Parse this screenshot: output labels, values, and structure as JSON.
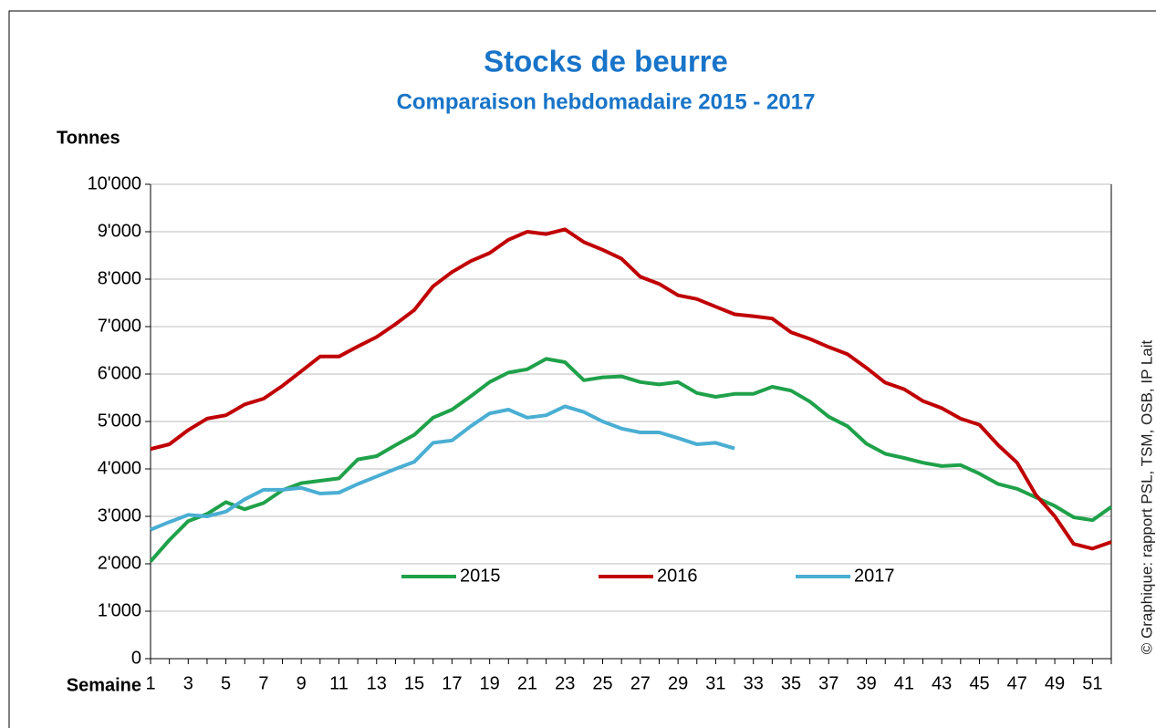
{
  "chart_data": {
    "type": "line",
    "title": "Stocks de beurre",
    "subtitle": "Comparaison hebdomadaire 2015 - 2017",
    "y_label": "Tonnes",
    "x_label": "Semaine",
    "credit": "© Graphique: rapport PSL, TSM, OSB, IP Lait",
    "categories": [
      1,
      null,
      3,
      null,
      5,
      null,
      7,
      null,
      9,
      null,
      11,
      null,
      13,
      null,
      15,
      null,
      17,
      null,
      19,
      null,
      21,
      null,
      23,
      null,
      25,
      null,
      27,
      null,
      29,
      null,
      31,
      null,
      33,
      null,
      35,
      null,
      37,
      null,
      39,
      null,
      41,
      null,
      43,
      null,
      45,
      null,
      47,
      null,
      49,
      null,
      51,
      null
    ],
    "ylim": [
      0,
      10000
    ],
    "yticks": [
      0,
      {
        "value": 1000,
        "label": "1'000"
      },
      {
        "value": 2000,
        "label": "2'000"
      },
      {
        "value": 3000,
        "label": "3'000"
      },
      {
        "value": 4000,
        "label": "4'000"
      },
      {
        "value": 5000,
        "label": "5'000"
      },
      {
        "value": 6000,
        "label": "6'000"
      },
      {
        "value": 7000,
        "label": "7'000"
      },
      {
        "value": 8000,
        "label": "8'000"
      },
      {
        "value": 9000,
        "label": "9'000"
      },
      {
        "value": 10000,
        "label": "10'000"
      }
    ],
    "grid": true,
    "legend": "bottom",
    "series": [
      {
        "name": "2015",
        "color": "#1fa14a",
        "values": [
          2050,
          2500,
          2900,
          3050,
          3300,
          3150,
          3280,
          3550,
          3700,
          3750,
          3800,
          4200,
          4270,
          4500,
          4720,
          5080,
          5250,
          5530,
          5830,
          6030,
          6100,
          6320,
          6250,
          5870,
          5930,
          5950,
          5830,
          5780,
          5830,
          5600,
          5520,
          5580,
          5580,
          5730,
          5650,
          5420,
          5100,
          4900,
          4530,
          4320,
          4230,
          4130,
          4060,
          4080,
          3900,
          3680,
          3580,
          3400,
          3220,
          2980,
          2920,
          3200
        ]
      },
      {
        "name": "2016",
        "color": "#c00000",
        "values": [
          4420,
          4520,
          4820,
          5060,
          5130,
          5360,
          5480,
          5750,
          6060,
          6370,
          6370,
          6580,
          6780,
          7050,
          7350,
          7850,
          8150,
          8380,
          8550,
          8830,
          9000,
          8950,
          9050,
          8780,
          8620,
          8430,
          8050,
          7900,
          7660,
          7580,
          7420,
          7260,
          7220,
          7170,
          6880,
          6740,
          6570,
          6420,
          6130,
          5820,
          5680,
          5430,
          5280,
          5060,
          4930,
          4500,
          4130,
          3450,
          3000,
          2420,
          2320,
          2460
        ]
      },
      {
        "name": "2017",
        "color": "#4aaed3",
        "values": [
          2720,
          2880,
          3030,
          3000,
          3100,
          3360,
          3560,
          3560,
          3600,
          3480,
          3500,
          3680,
          3840,
          4000,
          4150,
          4550,
          4600,
          4900,
          5170,
          5250,
          5080,
          5130,
          5320,
          5200,
          5000,
          4850,
          4770,
          4770,
          4650,
          4520,
          4550,
          4430,
          null,
          null,
          null,
          null,
          null,
          null,
          null,
          null,
          null,
          null,
          null,
          null,
          null,
          null,
          null,
          null,
          null,
          null,
          null,
          null
        ]
      }
    ]
  }
}
